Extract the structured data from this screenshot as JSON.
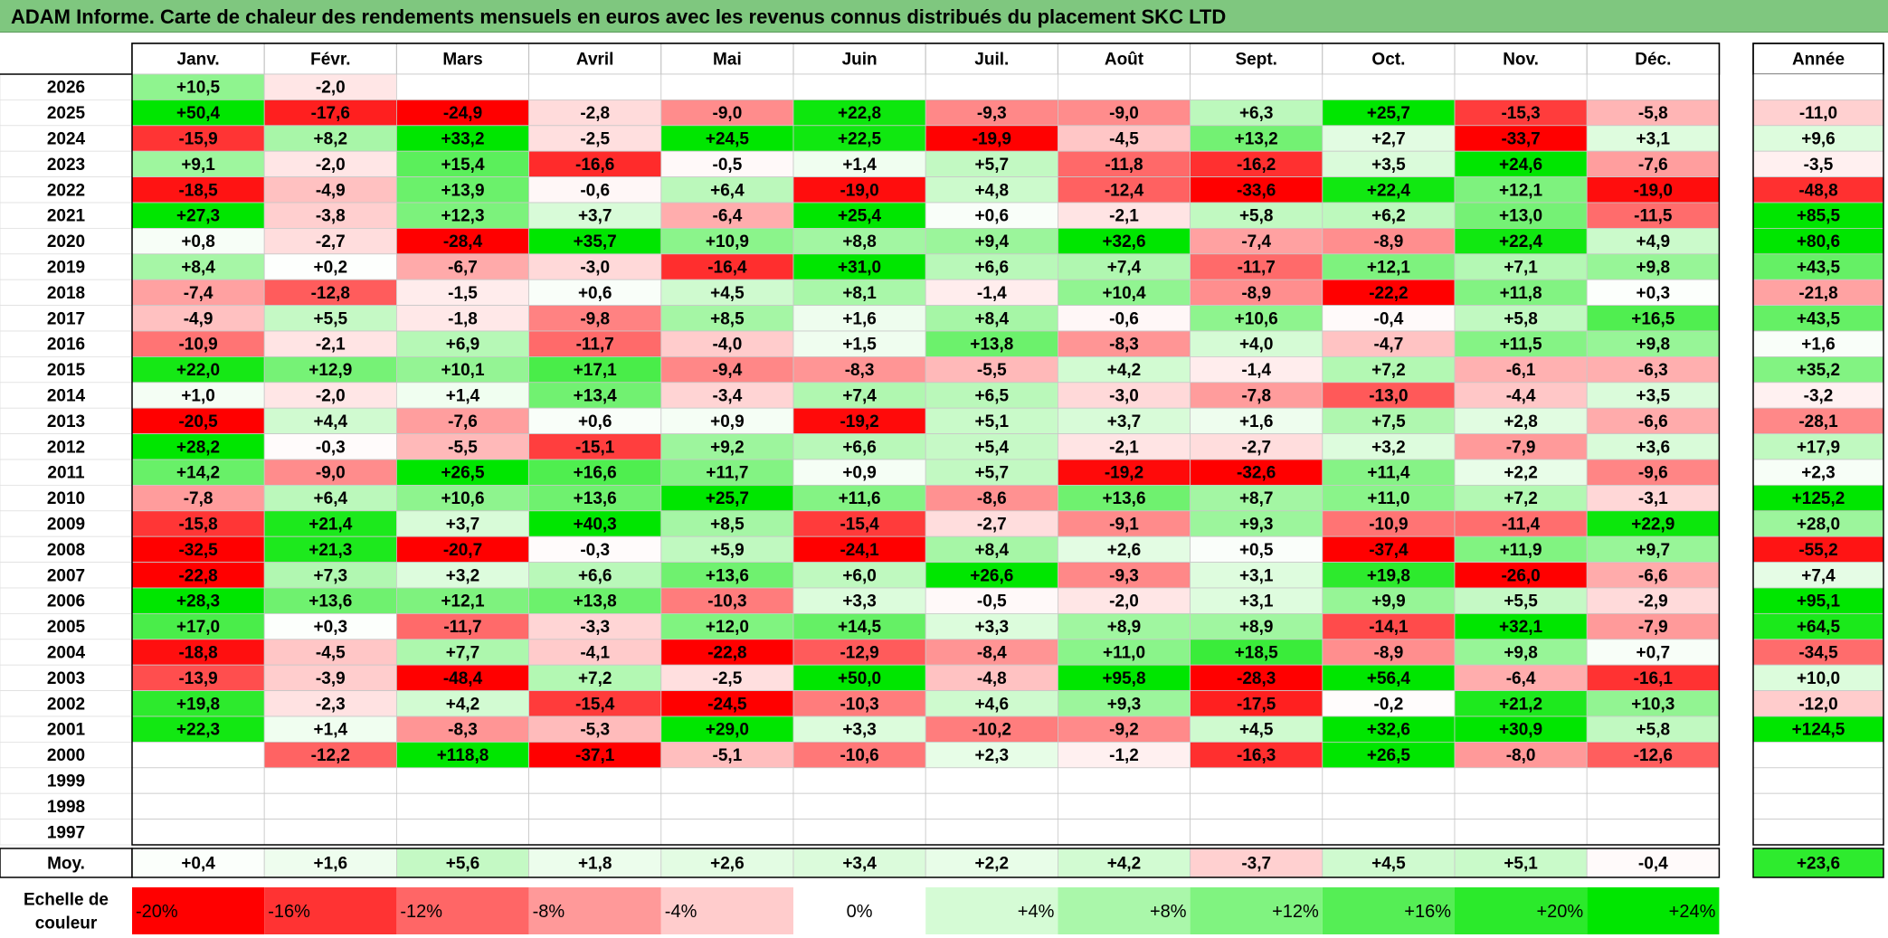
{
  "title": "ADAM Informe. Carte de chaleur des rendements mensuels en euros avec les revenus connus distribués du placement SKC LTD",
  "chart_data": {
    "type": "heatmap",
    "columns": [
      "Janv.",
      "Févr.",
      "Mars",
      "Avril",
      "Mai",
      "Juin",
      "Juil.",
      "Août",
      "Sept.",
      "Oct.",
      "Nov.",
      "Déc."
    ],
    "year_header": "Année",
    "rows": [
      {
        "year": "2026",
        "months": [
          "+10,5",
          "-2,0",
          "",
          "",
          "",
          "",
          "",
          "",
          "",
          "",
          "",
          ""
        ],
        "annual": ""
      },
      {
        "year": "2025",
        "months": [
          "+50,4",
          "-17,6",
          "-24,9",
          "-2,8",
          "-9,0",
          "+22,8",
          "-9,3",
          "-9,0",
          "+6,3",
          "+25,7",
          "-15,3",
          "-5,8"
        ],
        "annual": "-11,0"
      },
      {
        "year": "2024",
        "months": [
          "-15,9",
          "+8,2",
          "+33,2",
          "-2,5",
          "+24,5",
          "+22,5",
          "-19,9",
          "-4,5",
          "+13,2",
          "+2,7",
          "-33,7",
          "+3,1"
        ],
        "annual": "+9,6"
      },
      {
        "year": "2023",
        "months": [
          "+9,1",
          "-2,0",
          "+15,4",
          "-16,6",
          "-0,5",
          "+1,4",
          "+5,7",
          "-11,8",
          "-16,2",
          "+3,5",
          "+24,6",
          "-7,6"
        ],
        "annual": "-3,5"
      },
      {
        "year": "2022",
        "months": [
          "-18,5",
          "-4,9",
          "+13,9",
          "-0,6",
          "+6,4",
          "-19,0",
          "+4,8",
          "-12,4",
          "-33,6",
          "+22,4",
          "+12,1",
          "-19,0"
        ],
        "annual": "-48,8"
      },
      {
        "year": "2021",
        "months": [
          "+27,3",
          "-3,8",
          "+12,3",
          "+3,7",
          "-6,4",
          "+25,4",
          "+0,6",
          "-2,1",
          "+5,8",
          "+6,2",
          "+13,0",
          "-11,5"
        ],
        "annual": "+85,5"
      },
      {
        "year": "2020",
        "months": [
          "+0,8",
          "-2,7",
          "-28,4",
          "+35,7",
          "+10,9",
          "+8,8",
          "+9,4",
          "+32,6",
          "-7,4",
          "-8,9",
          "+22,4",
          "+4,9"
        ],
        "annual": "+80,6"
      },
      {
        "year": "2019",
        "months": [
          "+8,4",
          "+0,2",
          "-6,7",
          "-3,0",
          "-16,4",
          "+31,0",
          "+6,6",
          "+7,4",
          "-11,7",
          "+12,1",
          "+7,1",
          "+9,8"
        ],
        "annual": "+43,5"
      },
      {
        "year": "2018",
        "months": [
          "-7,4",
          "-12,8",
          "-1,5",
          "+0,6",
          "+4,5",
          "+8,1",
          "-1,4",
          "+10,4",
          "-8,9",
          "-22,2",
          "+11,8",
          "+0,3"
        ],
        "annual": "-21,8"
      },
      {
        "year": "2017",
        "months": [
          "-4,9",
          "+5,5",
          "-1,8",
          "-9,8",
          "+8,5",
          "+1,6",
          "+8,4",
          "-0,6",
          "+10,6",
          "-0,4",
          "+5,8",
          "+16,5"
        ],
        "annual": "+43,5"
      },
      {
        "year": "2016",
        "months": [
          "-10,9",
          "-2,1",
          "+6,9",
          "-11,7",
          "-4,0",
          "+1,5",
          "+13,8",
          "-8,3",
          "+4,0",
          "-4,7",
          "+11,5",
          "+9,8"
        ],
        "annual": "+1,6"
      },
      {
        "year": "2015",
        "months": [
          "+22,0",
          "+12,9",
          "+10,1",
          "+17,1",
          "-9,4",
          "-8,3",
          "-5,5",
          "+4,2",
          "-1,4",
          "+7,2",
          "-6,1",
          "-6,3"
        ],
        "annual": "+35,2"
      },
      {
        "year": "2014",
        "months": [
          "+1,0",
          "-2,0",
          "+1,4",
          "+13,4",
          "-3,4",
          "+7,4",
          "+6,5",
          "-3,0",
          "-7,8",
          "-13,0",
          "-4,4",
          "+3,5"
        ],
        "annual": "-3,2"
      },
      {
        "year": "2013",
        "months": [
          "-20,5",
          "+4,4",
          "-7,6",
          "+0,6",
          "+0,9",
          "-19,2",
          "+5,1",
          "+3,7",
          "+1,6",
          "+7,5",
          "+2,8",
          "-6,6"
        ],
        "annual": "-28,1"
      },
      {
        "year": "2012",
        "months": [
          "+28,2",
          "-0,3",
          "-5,5",
          "-15,1",
          "+9,2",
          "+6,6",
          "+5,4",
          "-2,1",
          "-2,7",
          "+3,2",
          "-7,9",
          "+3,6"
        ],
        "annual": "+17,9"
      },
      {
        "year": "2011",
        "months": [
          "+14,2",
          "-9,0",
          "+26,5",
          "+16,6",
          "+11,7",
          "+0,9",
          "+5,7",
          "-19,2",
          "-32,6",
          "+11,4",
          "+2,2",
          "-9,6"
        ],
        "annual": "+2,3"
      },
      {
        "year": "2010",
        "months": [
          "-7,8",
          "+6,4",
          "+10,6",
          "+13,6",
          "+25,7",
          "+11,6",
          "-8,6",
          "+13,6",
          "+8,7",
          "+11,0",
          "+7,2",
          "-3,1"
        ],
        "annual": "+125,2"
      },
      {
        "year": "2009",
        "months": [
          "-15,8",
          "+21,4",
          "+3,7",
          "+40,3",
          "+8,5",
          "-15,4",
          "-2,7",
          "-9,1",
          "+9,3",
          "-10,9",
          "-11,4",
          "+22,9"
        ],
        "annual": "+28,0"
      },
      {
        "year": "2008",
        "months": [
          "-32,5",
          "+21,3",
          "-20,7",
          "-0,3",
          "+5,9",
          "-24,1",
          "+8,4",
          "+2,6",
          "+0,5",
          "-37,4",
          "+11,9",
          "+9,7"
        ],
        "annual": "-55,2"
      },
      {
        "year": "2007",
        "months": [
          "-22,8",
          "+7,3",
          "+3,2",
          "+6,6",
          "+13,6",
          "+6,0",
          "+26,6",
          "-9,3",
          "+3,1",
          "+19,8",
          "-26,0",
          "-6,6"
        ],
        "annual": "+7,4"
      },
      {
        "year": "2006",
        "months": [
          "+28,3",
          "+13,6",
          "+12,1",
          "+13,8",
          "-10,3",
          "+3,3",
          "-0,5",
          "-2,0",
          "+3,1",
          "+9,9",
          "+5,5",
          "-2,9"
        ],
        "annual": "+95,1"
      },
      {
        "year": "2005",
        "months": [
          "+17,0",
          "+0,3",
          "-11,7",
          "-3,3",
          "+12,0",
          "+14,5",
          "+3,3",
          "+8,9",
          "+8,9",
          "-14,1",
          "+32,1",
          "-7,9"
        ],
        "annual": "+64,5"
      },
      {
        "year": "2004",
        "months": [
          "-18,8",
          "-4,5",
          "+7,7",
          "-4,1",
          "-22,8",
          "-12,9",
          "-8,4",
          "+11,0",
          "+18,5",
          "-8,9",
          "+9,8",
          "+0,7"
        ],
        "annual": "-34,5"
      },
      {
        "year": "2003",
        "months": [
          "-13,9",
          "-3,9",
          "-48,4",
          "+7,2",
          "-2,5",
          "+50,0",
          "-4,8",
          "+95,8",
          "-28,3",
          "+56,4",
          "-6,4",
          "-16,1"
        ],
        "annual": "+10,0"
      },
      {
        "year": "2002",
        "months": [
          "+19,8",
          "-2,3",
          "+4,2",
          "-15,4",
          "-24,5",
          "-10,3",
          "+4,6",
          "+9,3",
          "-17,5",
          "-0,2",
          "+21,2",
          "+10,3"
        ],
        "annual": "-12,0"
      },
      {
        "year": "2001",
        "months": [
          "+22,3",
          "+1,4",
          "-8,3",
          "-5,3",
          "+29,0",
          "+3,3",
          "-10,2",
          "-9,2",
          "+4,5",
          "+32,6",
          "+30,9",
          "+5,8"
        ],
        "annual": "+124,5"
      },
      {
        "year": "2000",
        "months": [
          "",
          "-12,2",
          "+118,8",
          "-37,1",
          "-5,1",
          "-10,6",
          "+2,3",
          "-1,2",
          "-16,3",
          "+26,5",
          "-8,0",
          "-12,6"
        ],
        "annual": ""
      },
      {
        "year": "1999",
        "months": [
          "",
          "",
          "",
          "",
          "",
          "",
          "",
          "",
          "",
          "",
          "",
          ""
        ],
        "annual": ""
      },
      {
        "year": "1998",
        "months": [
          "",
          "",
          "",
          "",
          "",
          "",
          "",
          "",
          "",
          "",
          "",
          ""
        ],
        "annual": ""
      },
      {
        "year": "1997",
        "months": [
          "",
          "",
          "",
          "",
          "",
          "",
          "",
          "",
          "",
          "",
          "",
          ""
        ],
        "annual": ""
      }
    ],
    "average": {
      "label": "Moy.",
      "months": [
        "+0,4",
        "+1,6",
        "+5,6",
        "+1,8",
        "+2,6",
        "+3,4",
        "+2,2",
        "+4,2",
        "-3,7",
        "+4,5",
        "+5,1",
        "-0,4"
      ],
      "annual": "+23,6"
    },
    "scale": {
      "label_line1": "Echelle de",
      "label_line2": "couleur",
      "ticks": [
        "-20%",
        "-16%",
        "-12%",
        "-8%",
        "-4%",
        "0%",
        "+4%",
        "+8%",
        "+12%",
        "+16%",
        "+20%",
        "+24%"
      ]
    },
    "colors": {
      "negative_max": "#ff0000",
      "neutral": "#ffffff",
      "positive_max": "#00e600",
      "title_bar": "#7fc77f"
    }
  }
}
